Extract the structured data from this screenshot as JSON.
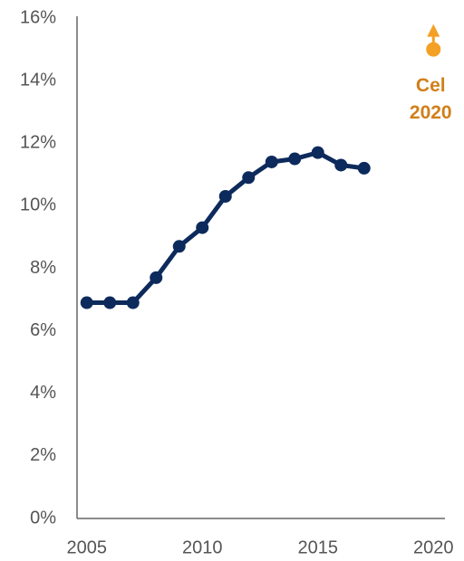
{
  "chart_data": {
    "type": "line",
    "x": [
      2005,
      2006,
      2007,
      2008,
      2009,
      2010,
      2011,
      2012,
      2013,
      2014,
      2015,
      2016,
      2017
    ],
    "series": [
      {
        "color": "#0d2a5c",
        "values": [
          6.9,
          6.9,
          6.9,
          7.7,
          8.7,
          9.3,
          10.3,
          10.9,
          11.4,
          11.5,
          11.7,
          11.3,
          11.2
        ]
      }
    ],
    "target": {
      "x": 2020,
      "value": 15,
      "label": [
        "Cel",
        "2020"
      ],
      "color": "#f4a024",
      "label_color": "#d17f1a"
    },
    "xlim": [
      2004.5,
      2020.5
    ],
    "xticks": [
      2005,
      2010,
      2015,
      2020
    ],
    "ylim": [
      0,
      16
    ],
    "yticks": [
      {
        "value": 0,
        "label": "0%"
      },
      {
        "value": 2,
        "label": "2%"
      },
      {
        "value": 4,
        "label": "4%"
      },
      {
        "value": 6,
        "label": "6%"
      },
      {
        "value": 8,
        "label": "8%"
      },
      {
        "value": 10,
        "label": "10%"
      },
      {
        "value": 12,
        "label": "12%"
      },
      {
        "value": 14,
        "label": "14%"
      },
      {
        "value": 16,
        "label": "16%"
      }
    ]
  }
}
